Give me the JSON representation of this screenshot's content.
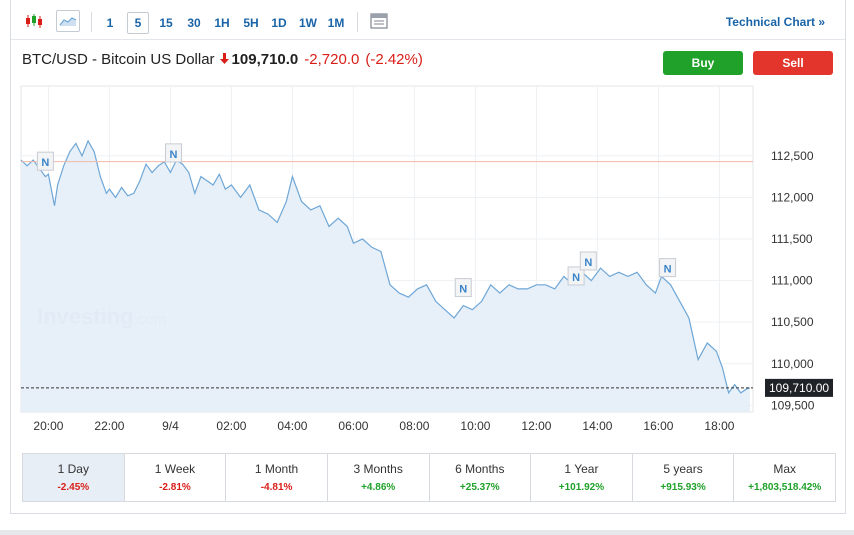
{
  "toolbar": {
    "chart_type_icon": "candlestick-icon",
    "area_icon": "area-chart-icon",
    "timeframes": [
      "1",
      "5",
      "15",
      "30",
      "1H",
      "5H",
      "1D",
      "1W",
      "1M"
    ],
    "active_timeframe": "5",
    "settings_icon": "table-icon",
    "technical_link": "Technical Chart »"
  },
  "header": {
    "name": "BTC/USD - Bitcoin US Dollar",
    "direction_icon": "down-arrow-icon",
    "price": "109,710.0",
    "change": "-2,720.0",
    "change_pct": "(-2.42%)",
    "buy_label": "Buy",
    "sell_label": "Sell"
  },
  "colors": {
    "line": "#6ea6d6",
    "area": "#e4eef8",
    "up": "#20a12a",
    "down": "#d91e18",
    "accent": "#1a64a8",
    "prev_close": "#f0b9aa"
  },
  "chart_data": {
    "type": "area",
    "watermark": "Investing.com",
    "x_tick_labels": [
      "20:00",
      "22:00",
      "9/4",
      "02:00",
      "04:00",
      "06:00",
      "08:00",
      "10:00",
      "12:00",
      "14:00",
      "16:00",
      "18:00"
    ],
    "y_tick_labels": [
      "112,500",
      "112,000",
      "111,500",
      "111,000",
      "110,500",
      "110,000",
      "109,500"
    ],
    "y_ticks": [
      112500,
      112000,
      111500,
      111000,
      110500,
      110000,
      109500
    ],
    "ylim": [
      109420,
      113340
    ],
    "xlim": [
      19.1,
      43.1
    ],
    "previous_close": 112430,
    "last_price": 109710,
    "last_price_label": "109,710.00",
    "news_marker_label": "N",
    "news_markers": [
      {
        "x": 19.9,
        "y": 112400
      },
      {
        "x": 24.1,
        "y": 112500
      },
      {
        "x": 33.6,
        "y": 110880
      },
      {
        "x": 37.3,
        "y": 111020
      },
      {
        "x": 37.7,
        "y": 111200
      },
      {
        "x": 40.3,
        "y": 111120
      }
    ],
    "series": [
      {
        "x": [
          19.1,
          19.3,
          19.5,
          19.7,
          19.9,
          20.0,
          20.2,
          20.3,
          20.5,
          20.7,
          20.9,
          21.1,
          21.3,
          21.5,
          21.7,
          21.9,
          22.0,
          22.2,
          22.4,
          22.6,
          22.8,
          23.0,
          23.2,
          23.4,
          23.6,
          23.8,
          24.0,
          24.2,
          24.4,
          24.6,
          24.8,
          25.0,
          25.2,
          25.4,
          25.6,
          25.8,
          26.0,
          26.3,
          26.6,
          26.9,
          27.2,
          27.5,
          27.8,
          28.0,
          28.3,
          28.6,
          28.9,
          29.2,
          29.5,
          29.8,
          30.0,
          30.3,
          30.6,
          30.9,
          31.2,
          31.5,
          31.8,
          32.1,
          32.4,
          32.7,
          33.0,
          33.3,
          33.6,
          33.9,
          34.2,
          34.5,
          34.8,
          35.1,
          35.4,
          35.7,
          36.0,
          36.3,
          36.6,
          36.9,
          37.2,
          37.5,
          37.8,
          38.1,
          38.4,
          38.7,
          39.0,
          39.3,
          39.6,
          39.9,
          40.1,
          40.4,
          40.7,
          41.0,
          41.3,
          41.6,
          41.9,
          42.1,
          42.3,
          42.5,
          42.7,
          42.9,
          43.0
        ],
        "y": [
          112450,
          112380,
          112450,
          112350,
          112250,
          112280,
          111900,
          112150,
          112380,
          112550,
          112650,
          112500,
          112680,
          112550,
          112250,
          112050,
          112100,
          112000,
          112120,
          112020,
          112050,
          112200,
          112400,
          112300,
          112380,
          112430,
          112300,
          112450,
          112400,
          112300,
          112050,
          112250,
          112200,
          112150,
          112280,
          112100,
          112150,
          112000,
          112150,
          111850,
          111800,
          111700,
          111950,
          112250,
          111950,
          111850,
          111900,
          111650,
          111750,
          111650,
          111450,
          111500,
          111400,
          111350,
          110950,
          110850,
          110800,
          110900,
          110950,
          110750,
          110650,
          110550,
          110700,
          110650,
          110750,
          110950,
          110850,
          110950,
          110900,
          110900,
          110950,
          110950,
          110900,
          111050,
          110950,
          111100,
          111000,
          111150,
          111050,
          111100,
          111050,
          111100,
          110950,
          110850,
          111050,
          110950,
          110750,
          110550,
          110050,
          110250,
          110150,
          109950,
          109650,
          109750,
          109650,
          109700,
          109710
        ]
      }
    ]
  },
  "periods": [
    {
      "label": "1 Day",
      "value": "-2.45%",
      "dir": "neg"
    },
    {
      "label": "1 Week",
      "value": "-2.81%",
      "dir": "neg"
    },
    {
      "label": "1 Month",
      "value": "-4.81%",
      "dir": "neg"
    },
    {
      "label": "3 Months",
      "value": "+4.86%",
      "dir": "pos"
    },
    {
      "label": "6 Months",
      "value": "+25.37%",
      "dir": "pos"
    },
    {
      "label": "1 Year",
      "value": "+101.92%",
      "dir": "pos"
    },
    {
      "label": "5 years",
      "value": "+915.93%",
      "dir": "pos"
    },
    {
      "label": "Max",
      "value": "+1,803,518.42%",
      "dir": "pos"
    }
  ]
}
